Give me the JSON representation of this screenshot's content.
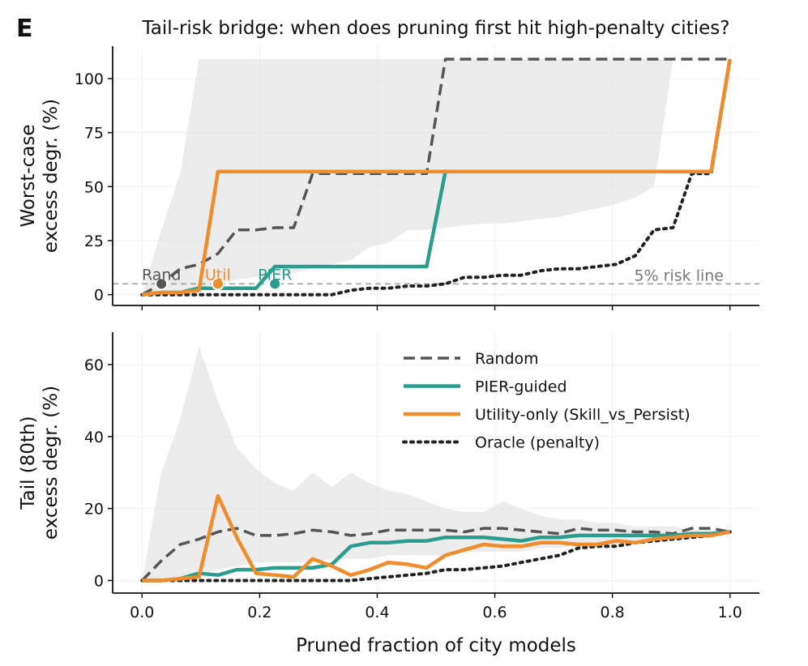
{
  "panel_letter": "E",
  "title": "Tail-risk bridge: when does pruning first hit high-penalty cities?",
  "xlabel": "Pruned fraction of city models",
  "x_ticks": [
    "0.0",
    "0.2",
    "0.4",
    "0.6",
    "0.8",
    "1.0"
  ],
  "colors": {
    "random": "#555555",
    "pier": "#2a9d8f",
    "utility": "#f08c2c",
    "oracle": "#222222",
    "band": "#e6e6e6",
    "riskline": "#aaaaaa"
  },
  "legend": [
    "Random",
    "PIER-guided",
    "Utility-only (Skill_vs_Persist)",
    "Oracle (penalty)"
  ],
  "chart_data": [
    {
      "type": "line",
      "panel": "top",
      "ylabel_lines": [
        "Worst-case",
        "excess degr. (%)"
      ],
      "xlim": [
        -0.05,
        1.05
      ],
      "ylim": [
        -5,
        115
      ],
      "y_ticks": [
        0,
        25,
        50,
        75,
        100
      ],
      "risk_line": {
        "y": 5,
        "label": "5% risk line"
      },
      "first_hit_markers": [
        {
          "label": "Rand",
          "x": 0.033,
          "y": 5,
          "series": "random"
        },
        {
          "label": "Util",
          "x": 0.129,
          "y": 5,
          "series": "utility"
        },
        {
          "label": "PIER",
          "x": 0.226,
          "y": 5,
          "series": "pier"
        }
      ],
      "band": {
        "x": [
          0.0,
          0.033,
          0.065,
          0.097,
          0.129,
          0.161,
          0.194,
          0.226,
          0.258,
          0.29,
          0.323,
          0.355,
          0.387,
          0.419,
          0.452,
          0.484,
          0.516,
          0.548,
          0.581,
          0.613,
          0.645,
          0.677,
          0.71,
          0.742,
          0.774,
          0.806,
          0.839,
          0.871,
          0.903
        ],
        "lower": [
          0,
          0,
          2,
          3,
          5,
          7,
          8,
          9,
          10,
          12,
          14,
          16,
          22,
          24,
          30,
          30,
          31,
          32,
          33,
          33,
          34,
          35,
          36,
          38,
          40,
          42,
          45,
          50,
          109
        ],
        "upper": [
          0,
          30,
          56,
          109,
          109,
          109,
          109,
          109,
          109,
          109,
          109,
          109,
          109,
          109,
          109,
          109,
          109,
          109,
          109,
          109,
          109,
          109,
          109,
          109,
          109,
          109,
          109,
          109,
          109
        ]
      },
      "series": [
        {
          "name": "Random",
          "key": "random",
          "style": "dashed",
          "x": [
            0.0,
            0.033,
            0.065,
            0.097,
            0.129,
            0.161,
            0.194,
            0.226,
            0.258,
            0.29,
            0.323,
            0.355,
            0.387,
            0.419,
            0.452,
            0.484,
            0.516,
            0.548,
            0.581,
            0.613,
            0.645,
            0.677,
            0.71,
            0.742,
            0.774,
            0.806,
            0.839,
            0.871,
            0.903,
            0.935,
            0.968,
            1.0
          ],
          "values": [
            0,
            5,
            12,
            14,
            19,
            30,
            30,
            31,
            31,
            56,
            56,
            56,
            56,
            56,
            56,
            56,
            109,
            109,
            109,
            109,
            109,
            109,
            109,
            109,
            109,
            109,
            109,
            109,
            109,
            109,
            109,
            109
          ]
        },
        {
          "name": "PIER-guided",
          "key": "pier",
          "style": "solid",
          "x": [
            0.0,
            0.033,
            0.065,
            0.097,
            0.129,
            0.161,
            0.194,
            0.226,
            0.258,
            0.29,
            0.323,
            0.355,
            0.387,
            0.419,
            0.452,
            0.484,
            0.516,
            0.548,
            0.581,
            0.613,
            0.645,
            0.677,
            0.71,
            0.742,
            0.774,
            0.806,
            0.839,
            0.871,
            0.903,
            0.935,
            0.968,
            1.0
          ],
          "values": [
            0,
            1,
            1,
            3,
            3,
            3,
            3,
            13,
            13,
            13,
            13,
            13,
            13,
            13,
            13,
            13,
            57,
            57,
            57,
            57,
            57,
            57,
            57,
            57,
            57,
            57,
            57,
            57,
            57,
            57,
            57,
            109
          ]
        },
        {
          "name": "Utility-only (Skill_vs_Persist)",
          "key": "utility",
          "style": "solid",
          "x": [
            0.0,
            0.033,
            0.065,
            0.097,
            0.129,
            0.161,
            0.194,
            0.226,
            0.258,
            0.29,
            0.323,
            0.355,
            0.387,
            0.419,
            0.452,
            0.484,
            0.516,
            0.548,
            0.581,
            0.613,
            0.645,
            0.677,
            0.71,
            0.742,
            0.774,
            0.806,
            0.839,
            0.871,
            0.903,
            0.935,
            0.968,
            1.0
          ],
          "values": [
            0,
            1,
            1,
            2,
            57,
            57,
            57,
            57,
            57,
            57,
            57,
            57,
            57,
            57,
            57,
            57,
            57,
            57,
            57,
            57,
            57,
            57,
            57,
            57,
            57,
            57,
            57,
            57,
            57,
            57,
            57,
            109
          ]
        },
        {
          "name": "Oracle (penalty)",
          "key": "oracle",
          "style": "dotted",
          "x": [
            0.0,
            0.033,
            0.065,
            0.097,
            0.129,
            0.161,
            0.194,
            0.226,
            0.258,
            0.29,
            0.323,
            0.355,
            0.387,
            0.419,
            0.452,
            0.484,
            0.516,
            0.548,
            0.581,
            0.613,
            0.645,
            0.677,
            0.71,
            0.742,
            0.774,
            0.806,
            0.839,
            0.871,
            0.903,
            0.935,
            0.968,
            1.0
          ],
          "values": [
            0,
            0,
            0,
            0,
            0,
            0,
            0,
            0,
            0,
            0,
            0,
            2,
            3,
            3,
            4,
            4,
            5,
            8,
            8,
            9,
            9,
            11,
            12,
            12,
            13,
            14,
            18,
            30,
            31,
            56,
            56,
            109
          ]
        }
      ]
    },
    {
      "type": "line",
      "panel": "bottom",
      "ylabel_lines": [
        "Tail (80th)",
        "excess degr. (%)"
      ],
      "xlim": [
        -0.05,
        1.05
      ],
      "ylim": [
        -3.5,
        69
      ],
      "y_ticks": [
        0,
        20,
        40,
        60
      ],
      "band": {
        "x": [
          0.0,
          0.033,
          0.065,
          0.097,
          0.129,
          0.161,
          0.194,
          0.226,
          0.258,
          0.29,
          0.323,
          0.355,
          0.387,
          0.419,
          0.452,
          0.484,
          0.516,
          0.548,
          0.581,
          0.613,
          0.645,
          0.677,
          0.71,
          0.742,
          0.774,
          0.806,
          0.839,
          0.871,
          0.903,
          0.935,
          0.968,
          1.0
        ],
        "lower": [
          0,
          0,
          1,
          2,
          3,
          4,
          5,
          5,
          5,
          5,
          6,
          6,
          6,
          7,
          7,
          7,
          7,
          8,
          8,
          8,
          8,
          9,
          9,
          10,
          10,
          10,
          11,
          11,
          12,
          12,
          12,
          13
        ],
        "upper": [
          0,
          30,
          45,
          65,
          50,
          37,
          31,
          27,
          25,
          30,
          26,
          30,
          27,
          25,
          24,
          22,
          20,
          19,
          19,
          22,
          20,
          18,
          17,
          17,
          16,
          16,
          15,
          15,
          15,
          14,
          14,
          13
        ]
      },
      "series": [
        {
          "name": "Random",
          "key": "random",
          "style": "dashed",
          "x": [
            0.0,
            0.033,
            0.065,
            0.097,
            0.129,
            0.161,
            0.194,
            0.226,
            0.258,
            0.29,
            0.323,
            0.355,
            0.387,
            0.419,
            0.452,
            0.484,
            0.516,
            0.548,
            0.581,
            0.613,
            0.645,
            0.677,
            0.71,
            0.742,
            0.774,
            0.806,
            0.839,
            0.871,
            0.903,
            0.935,
            0.968,
            1.0
          ],
          "values": [
            0,
            5.5,
            10,
            11.5,
            13.5,
            14.5,
            12.5,
            12.5,
            13,
            14,
            13.5,
            12.5,
            13,
            14,
            14,
            14,
            14,
            13.5,
            14.5,
            14.5,
            14,
            13.5,
            13,
            14.5,
            14,
            14,
            13.5,
            13.5,
            13,
            14.5,
            14.5,
            13.5
          ]
        },
        {
          "name": "PIER-guided",
          "key": "pier",
          "style": "solid",
          "x": [
            0.0,
            0.033,
            0.065,
            0.097,
            0.129,
            0.161,
            0.194,
            0.226,
            0.258,
            0.29,
            0.323,
            0.355,
            0.387,
            0.419,
            0.452,
            0.484,
            0.516,
            0.548,
            0.581,
            0.613,
            0.645,
            0.677,
            0.71,
            0.742,
            0.774,
            0.806,
            0.839,
            0.871,
            0.903,
            0.935,
            0.968,
            1.0
          ],
          "values": [
            0,
            0,
            0.5,
            2,
            1.5,
            3,
            3,
            3.5,
            3.5,
            3.5,
            4.5,
            9.5,
            10.5,
            10.5,
            11,
            11,
            12,
            12,
            12,
            11.5,
            11,
            12,
            12,
            12.5,
            12.5,
            12.5,
            12.5,
            12.5,
            12.5,
            13,
            13,
            13.5
          ]
        },
        {
          "name": "Utility-only (Skill_vs_Persist)",
          "key": "utility",
          "style": "solid",
          "x": [
            0.0,
            0.033,
            0.065,
            0.097,
            0.129,
            0.161,
            0.194,
            0.226,
            0.258,
            0.29,
            0.323,
            0.355,
            0.387,
            0.419,
            0.452,
            0.484,
            0.516,
            0.548,
            0.581,
            0.613,
            0.645,
            0.677,
            0.71,
            0.742,
            0.774,
            0.806,
            0.839,
            0.871,
            0.903,
            0.935,
            0.968,
            1.0
          ],
          "values": [
            0,
            0,
            0.5,
            1,
            23.5,
            12,
            2,
            1.5,
            1,
            6,
            4,
            1.5,
            3,
            5,
            4.5,
            3.5,
            7,
            8.5,
            10,
            9.5,
            9.5,
            10.5,
            10.5,
            10,
            10,
            11,
            10.5,
            11.5,
            12,
            12.5,
            12.5,
            13.5
          ]
        },
        {
          "name": "Oracle (penalty)",
          "key": "oracle",
          "style": "dotted",
          "x": [
            0.0,
            0.033,
            0.065,
            0.097,
            0.129,
            0.161,
            0.194,
            0.226,
            0.258,
            0.29,
            0.323,
            0.355,
            0.387,
            0.419,
            0.452,
            0.484,
            0.516,
            0.548,
            0.581,
            0.613,
            0.645,
            0.677,
            0.71,
            0.742,
            0.774,
            0.806,
            0.839,
            0.871,
            0.903,
            0.935,
            0.968,
            1.0
          ],
          "values": [
            0,
            0,
            0,
            0,
            0,
            0,
            0,
            0,
            0,
            0,
            0,
            0,
            0.5,
            1,
            1.5,
            2,
            3,
            3,
            3.5,
            4,
            5,
            6,
            7,
            9,
            9.5,
            9.5,
            10.5,
            11,
            11.5,
            12,
            12.5,
            13.5
          ]
        }
      ]
    }
  ]
}
